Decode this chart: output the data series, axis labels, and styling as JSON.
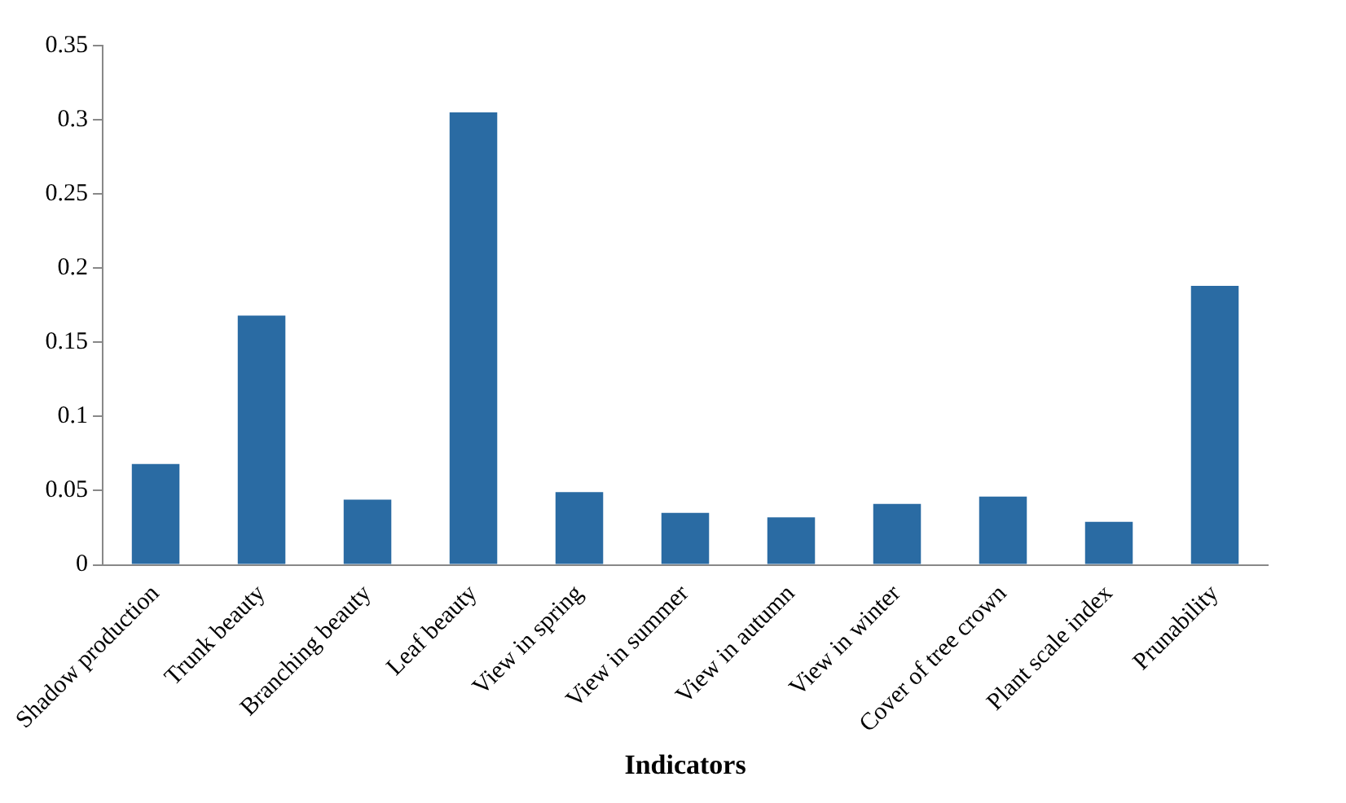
{
  "chart_data": {
    "type": "bar",
    "xlabel": "Indicators",
    "categories": [
      "Shadow production",
      "Trunk beauty",
      "Branching beauty",
      "Leaf beauty",
      "View in spring",
      "View in summer",
      "View in autumn",
      "View in winter",
      "Cover of tree crown",
      "Plant scale index",
      "Prunability"
    ],
    "values": [
      0.068,
      0.168,
      0.044,
      0.305,
      0.049,
      0.035,
      0.032,
      0.041,
      0.046,
      0.029,
      0.188
    ],
    "color": "#2a6ba3",
    "ylim": [
      0,
      0.35
    ],
    "yticks": [
      0,
      0.05,
      0.1,
      0.15,
      0.2,
      0.25,
      0.3,
      0.35
    ],
    "grid": false,
    "legend": false
  }
}
